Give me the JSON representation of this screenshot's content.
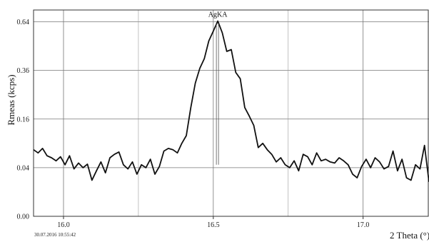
{
  "chart_data": {
    "type": "line",
    "title": "",
    "xlabel": "2 Theta (°)",
    "ylabel": "Rmeas (kcps)",
    "y_scale": "sqrt",
    "xlim": [
      15.9,
      17.22
    ],
    "ylim": [
      0,
      0.72
    ],
    "x_ticks": [
      16.0,
      16.5,
      17.0
    ],
    "x_tick_labels": [
      "16.0",
      "16.5",
      "17.0"
    ],
    "y_ticks": [
      0.0,
      0.04,
      0.16,
      0.36,
      0.64
    ],
    "y_tick_labels": [
      "0.00",
      "0.04",
      "0.16",
      "0.36",
      "0.64"
    ],
    "x_minor_grid": [
      15.9,
      16.25,
      16.75,
      17.22
    ],
    "grid": true,
    "annotations": [
      {
        "label": "AgKA",
        "x": 16.515,
        "y": 0.645
      }
    ],
    "series": [
      {
        "x": [
          15.9,
          15.915,
          15.93,
          15.945,
          15.96,
          15.975,
          15.99,
          16.005,
          16.02,
          16.035,
          16.05,
          16.065,
          16.08,
          16.095,
          16.11,
          16.125,
          16.14,
          16.155,
          16.17,
          16.185,
          16.2,
          16.215,
          16.23,
          16.245,
          16.26,
          16.275,
          16.29,
          16.305,
          16.32,
          16.335,
          16.35,
          16.365,
          16.38,
          16.395,
          16.41,
          16.425,
          16.44,
          16.455,
          16.47,
          16.485,
          16.5,
          16.515,
          16.53,
          16.545,
          16.56,
          16.575,
          16.59,
          16.605,
          16.62,
          16.635,
          16.65,
          16.665,
          16.68,
          16.695,
          16.71,
          16.725,
          16.74,
          16.755,
          16.77,
          16.785,
          16.8,
          16.815,
          16.83,
          16.845,
          16.86,
          16.875,
          16.89,
          16.905,
          16.92,
          16.935,
          16.95,
          16.965,
          16.98,
          16.995,
          17.01,
          17.025,
          17.04,
          17.055,
          17.07,
          17.085,
          17.1,
          17.115,
          17.13,
          17.145,
          17.16,
          17.175,
          17.19,
          17.205,
          17.22
        ],
        "y": [
          0.075,
          0.068,
          0.078,
          0.062,
          0.058,
          0.052,
          0.06,
          0.045,
          0.062,
          0.038,
          0.048,
          0.04,
          0.046,
          0.022,
          0.035,
          0.05,
          0.032,
          0.058,
          0.065,
          0.07,
          0.045,
          0.038,
          0.05,
          0.03,
          0.045,
          0.04,
          0.055,
          0.03,
          0.042,
          0.072,
          0.078,
          0.075,
          0.068,
          0.09,
          0.11,
          0.2,
          0.3,
          0.37,
          0.42,
          0.52,
          0.58,
          0.645,
          0.57,
          0.46,
          0.47,
          0.35,
          0.32,
          0.2,
          0.17,
          0.14,
          0.08,
          0.09,
          0.075,
          0.065,
          0.05,
          0.058,
          0.045,
          0.04,
          0.052,
          0.035,
          0.065,
          0.06,
          0.045,
          0.068,
          0.052,
          0.055,
          0.05,
          0.048,
          0.058,
          0.052,
          0.045,
          0.03,
          0.025,
          0.042,
          0.055,
          0.04,
          0.058,
          0.05,
          0.038,
          0.042,
          0.072,
          0.035,
          0.055,
          0.025,
          0.022,
          0.045,
          0.038,
          0.085,
          0.02
        ]
      }
    ]
  },
  "footer": {
    "timestamp": "30.07.2016  10:55:42"
  }
}
